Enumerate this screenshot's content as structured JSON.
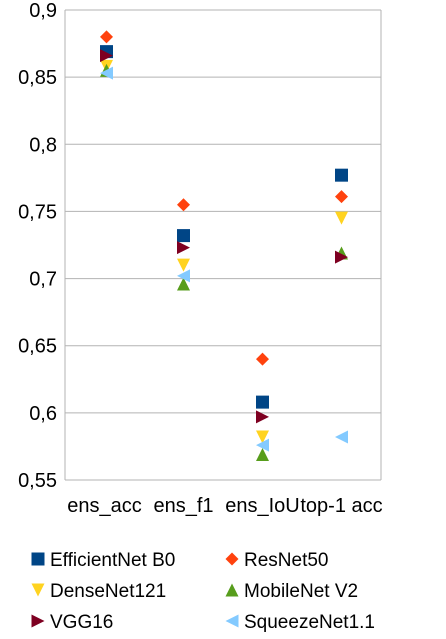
{
  "chart_data": {
    "type": "scatter",
    "title": "",
    "xlabel": "",
    "ylabel": "",
    "categories": [
      "ens_acc",
      "ens_f1",
      "ens_IoU",
      "top-1 acc"
    ],
    "ylim": [
      0.55,
      0.9
    ],
    "yticks": [
      0.55,
      0.6,
      0.65,
      0.7,
      0.75,
      0.8,
      0.85,
      0.9
    ],
    "ytick_labels": [
      "0,55",
      "0,6",
      "0,65",
      "0,7",
      "0,75",
      "0,8",
      "0,85",
      "0,9"
    ],
    "grid": "horizontal",
    "legend_position": "bottom",
    "series": [
      {
        "name": "EfficientNet B0",
        "marker": "square",
        "color": "#004586",
        "values": [
          0.869,
          0.732,
          0.608,
          0.777
        ]
      },
      {
        "name": "ResNet50",
        "marker": "diamond",
        "color": "#ff420e",
        "values": [
          0.88,
          0.755,
          0.64,
          0.761
        ]
      },
      {
        "name": "DenseNet121",
        "marker": "triangle-down",
        "color": "#ffd320",
        "values": [
          0.858,
          0.71,
          0.582,
          0.745
        ]
      },
      {
        "name": "MobileNet V2",
        "marker": "triangle-up",
        "color": "#579d1c",
        "values": [
          0.855,
          0.696,
          0.569,
          0.719
        ]
      },
      {
        "name": "VGG16",
        "marker": "triangle-right",
        "color": "#7e0021",
        "values": [
          0.866,
          0.723,
          0.597,
          0.716
        ]
      },
      {
        "name": "SqueezeNet1.1",
        "marker": "triangle-left",
        "color": "#83caff",
        "values": [
          0.853,
          0.702,
          0.576,
          0.582
        ]
      }
    ]
  }
}
